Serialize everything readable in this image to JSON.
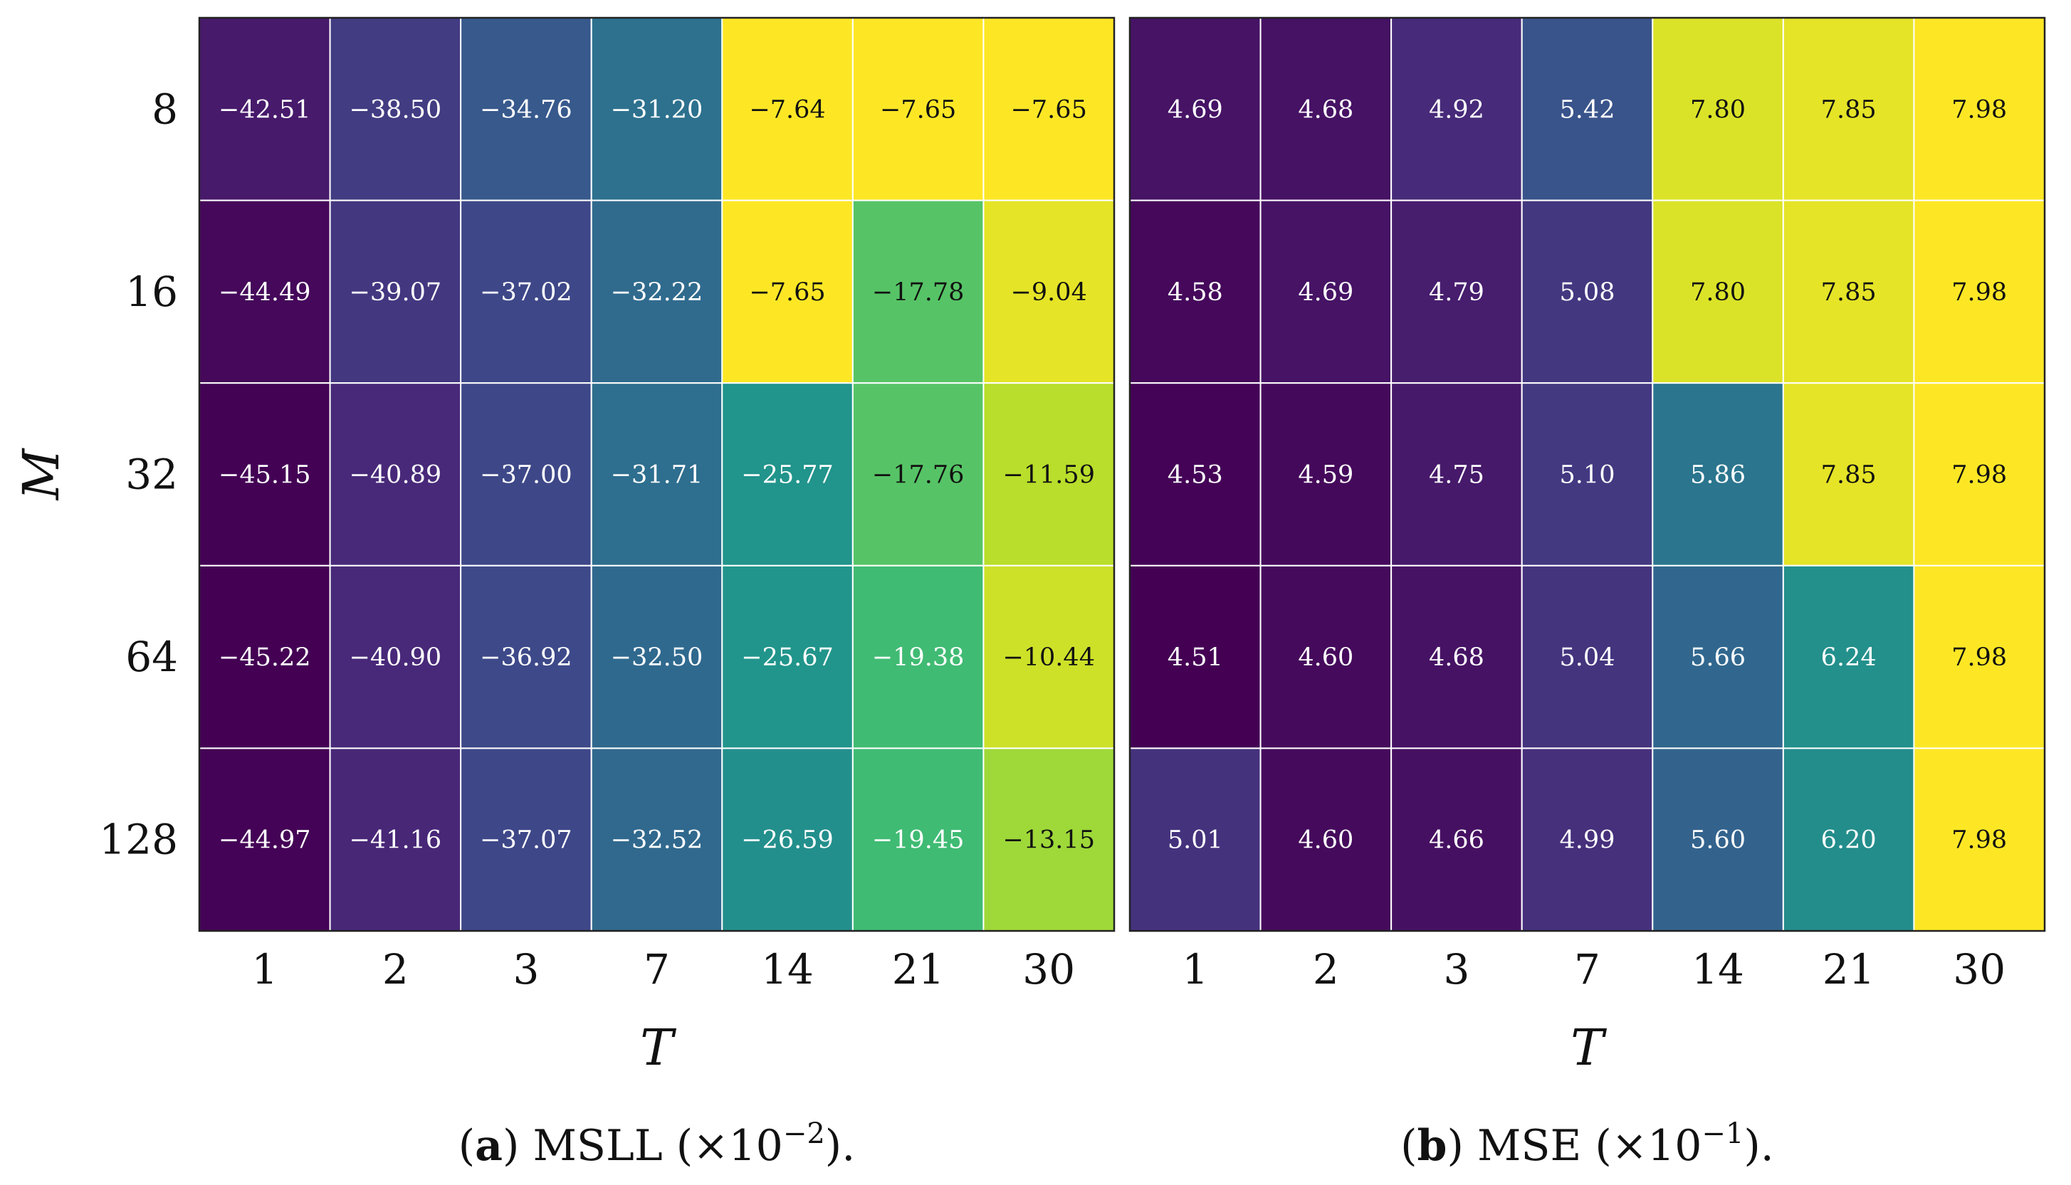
{
  "chart_data": [
    {
      "type": "heatmap",
      "title": "MSLL (×10⁻²).",
      "caption_letter": "a",
      "caption_text": "MSLL (×10",
      "caption_exp": "−2",
      "caption_tail": ").",
      "xlabel": "T",
      "ylabel": "M",
      "x_categories": [
        "1",
        "2",
        "3",
        "7",
        "14",
        "21",
        "30"
      ],
      "y_categories": [
        "8",
        "16",
        "32",
        "64",
        "128"
      ],
      "values": [
        [
          -42.51,
          -38.5,
          -34.76,
          -31.2,
          -7.64,
          -7.65,
          -7.65
        ],
        [
          -44.49,
          -39.07,
          -37.02,
          -32.22,
          -7.65,
          -17.78,
          -9.04
        ],
        [
          -45.15,
          -40.89,
          -37.0,
          -31.71,
          -25.77,
          -17.76,
          -11.59
        ],
        [
          -45.22,
          -40.9,
          -36.92,
          -32.5,
          -25.67,
          -19.38,
          -10.44
        ],
        [
          -44.97,
          -41.16,
          -37.07,
          -32.52,
          -26.59,
          -19.45,
          -13.15
        ]
      ],
      "labels": [
        [
          "−42.51",
          "−38.50",
          "−34.76",
          "−31.20",
          "−7.64",
          "−7.65",
          "−7.65"
        ],
        [
          "−44.49",
          "−39.07",
          "−37.02",
          "−32.22",
          "−7.65",
          "−17.78",
          "−9.04"
        ],
        [
          "−45.15",
          "−40.89",
          "−37.00",
          "−31.71",
          "−25.77",
          "−17.76",
          "−11.59"
        ],
        [
          "−45.22",
          "−40.90",
          "−36.92",
          "−32.50",
          "−25.67",
          "−19.38",
          "−10.44"
        ],
        [
          "−44.97",
          "−41.16",
          "−37.07",
          "−32.52",
          "−26.59",
          "−19.45",
          "−13.15"
        ]
      ],
      "colorscale": "viridis",
      "vmin": -45.22,
      "vmax": -7.64
    },
    {
      "type": "heatmap",
      "title": "MSE (×10⁻¹).",
      "caption_letter": "b",
      "caption_text": "MSE (×10",
      "caption_exp": "−1",
      "caption_tail": ").",
      "xlabel": "T",
      "ylabel": "",
      "x_categories": [
        "1",
        "2",
        "3",
        "7",
        "14",
        "21",
        "30"
      ],
      "y_categories": [
        "8",
        "16",
        "32",
        "64",
        "128"
      ],
      "values": [
        [
          4.69,
          4.68,
          4.92,
          5.42,
          7.8,
          7.85,
          7.98
        ],
        [
          4.58,
          4.69,
          4.79,
          5.08,
          7.8,
          7.85,
          7.98
        ],
        [
          4.53,
          4.59,
          4.75,
          5.1,
          5.86,
          7.85,
          7.98
        ],
        [
          4.51,
          4.6,
          4.68,
          5.04,
          5.66,
          6.24,
          7.98
        ],
        [
          5.01,
          4.6,
          4.66,
          4.99,
          5.6,
          6.2,
          7.98
        ]
      ],
      "labels": [
        [
          "4.69",
          "4.68",
          "4.92",
          "5.42",
          "7.80",
          "7.85",
          "7.98"
        ],
        [
          "4.58",
          "4.69",
          "4.79",
          "5.08",
          "7.80",
          "7.85",
          "7.98"
        ],
        [
          "4.53",
          "4.59",
          "4.75",
          "5.10",
          "5.86",
          "7.85",
          "7.98"
        ],
        [
          "4.51",
          "4.60",
          "4.68",
          "5.04",
          "5.66",
          "6.24",
          "7.98"
        ],
        [
          "5.01",
          "4.60",
          "4.66",
          "4.99",
          "5.60",
          "6.20",
          "7.98"
        ]
      ],
      "colorscale": "viridis",
      "vmin": 4.51,
      "vmax": 7.98
    }
  ],
  "colors": {
    "viridis": [
      "#440154",
      "#482878",
      "#3e4989",
      "#31688e",
      "#26828e",
      "#1f9e89",
      "#35b779",
      "#6ece58",
      "#b5de2b",
      "#fde725"
    ],
    "grid": "#ffffff",
    "frame": "#222222",
    "light_text": "#ffffff",
    "dark_text": "#111111"
  }
}
